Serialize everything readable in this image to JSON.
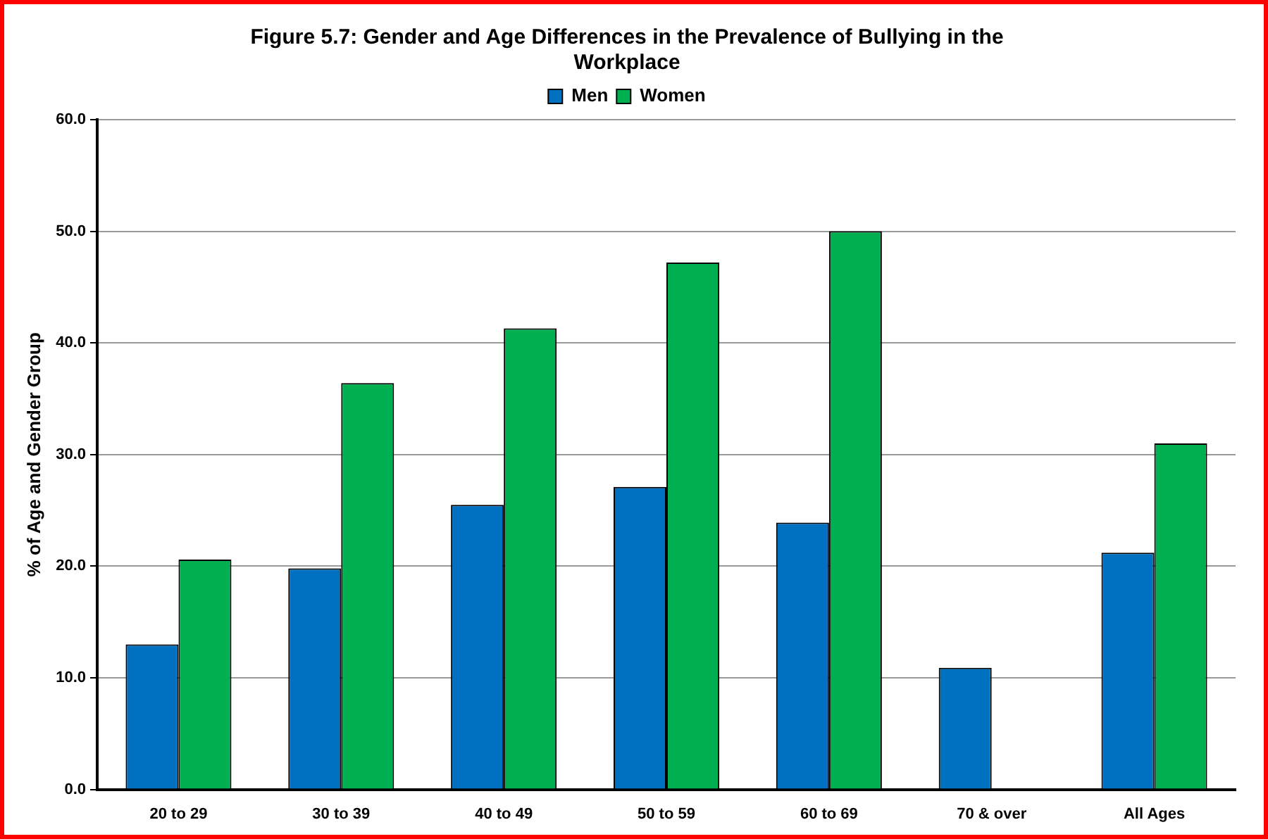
{
  "chart_data": {
    "type": "bar",
    "title": "Figure 5.7: Gender and Age Differences in the Prevalence of Bullying in the Workplace",
    "ylabel": "% of Age and Gender Group",
    "categories": [
      "20 to 29",
      "30 to 39",
      "40 to 49",
      "50 to 59",
      "60 to 69",
      "70 & over",
      "All Ages"
    ],
    "series": [
      {
        "name": "Men",
        "color": "#0070c0",
        "values": [
          13.0,
          19.8,
          25.5,
          27.1,
          23.9,
          10.9,
          21.2
        ]
      },
      {
        "name": "Women",
        "color": "#00b050",
        "values": [
          20.6,
          36.4,
          41.3,
          47.2,
          50.0,
          null,
          31.0
        ]
      }
    ],
    "ylim": [
      0,
      60
    ],
    "yticks": [
      {
        "value": 0,
        "label": "0.0"
      },
      {
        "value": 10,
        "label": "10.0"
      },
      {
        "value": 20,
        "label": "20.0"
      },
      {
        "value": 30,
        "label": "30.0"
      },
      {
        "value": 40,
        "label": "40.0"
      },
      {
        "value": 50,
        "label": "50.0"
      },
      {
        "value": 60,
        "label": "60.0"
      }
    ],
    "grid": "y",
    "legend": "top"
  }
}
